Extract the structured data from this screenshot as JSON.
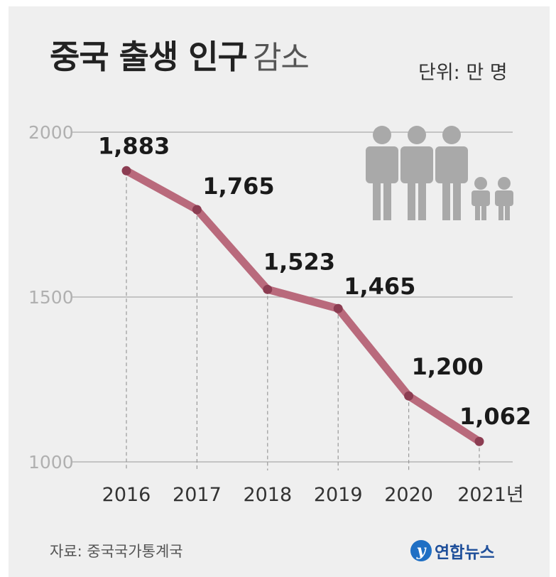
{
  "title": {
    "bold": "중국 출생 인구",
    "light": "감소"
  },
  "unit_label": "단위: 만 명",
  "source_label": "자료: 중국국가통계국",
  "brand": {
    "logo_glyph": "y",
    "name": "연합뉴스"
  },
  "colors": {
    "line": "#b96a7c",
    "point": "#8c3d52",
    "grid": "#aaaaaa",
    "axis_text": "#b0b0b0",
    "people_icons": "#a9a9a9"
  },
  "chart_data": {
    "type": "line",
    "categories": [
      "2016",
      "2017",
      "2018",
      "2019",
      "2020",
      "2021년"
    ],
    "values": [
      1883,
      1765,
      1523,
      1465,
      1200,
      1062
    ],
    "value_labels": [
      "1,883",
      "1,765",
      "1,523",
      "1,465",
      "1,200",
      "1,062"
    ],
    "yticks": [
      "2000",
      "1500",
      "1000"
    ],
    "ytick_values": [
      2000,
      1500,
      1000
    ],
    "ylim": [
      1000,
      2000
    ],
    "grid": true,
    "legend": "none",
    "xlabel": "",
    "ylabel": ""
  },
  "illustration": "people-icon"
}
